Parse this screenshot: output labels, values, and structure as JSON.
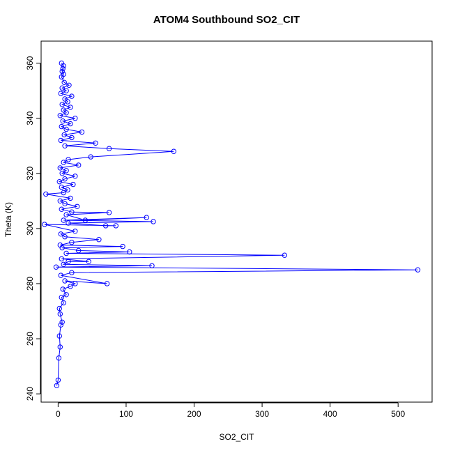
{
  "chart_data": {
    "type": "line",
    "title": "ATOM4 Southbound SO2_CIT",
    "xlabel": "SO2_CIT",
    "ylabel": "Theta (K)",
    "xlim": [
      -25,
      550
    ],
    "ylim": [
      237,
      368
    ],
    "x_ticks": [
      0,
      100,
      200,
      300,
      400,
      500
    ],
    "y_ticks": [
      240,
      260,
      280,
      300,
      320,
      340,
      360
    ],
    "series_color": "#0000ff",
    "marker": "open-circle",
    "grid": false,
    "series": [
      {
        "points": [
          [
            -2,
            243
          ],
          [
            0,
            245
          ],
          [
            1,
            253
          ],
          [
            3,
            257
          ],
          [
            2,
            261
          ],
          [
            4,
            265
          ],
          [
            6,
            266
          ],
          [
            3,
            269
          ],
          [
            2,
            271
          ],
          [
            8,
            273
          ],
          [
            5,
            275
          ],
          [
            12,
            276
          ],
          [
            7,
            278
          ],
          [
            18,
            279
          ],
          [
            25,
            280
          ],
          [
            10,
            281
          ],
          [
            72,
            280
          ],
          [
            4,
            283
          ],
          [
            20,
            284
          ],
          [
            529,
            285
          ],
          [
            -3,
            286
          ],
          [
            138,
            286.5
          ],
          [
            8,
            287
          ],
          [
            15,
            288
          ],
          [
            45,
            288
          ],
          [
            5,
            289
          ],
          [
            333,
            290.3
          ],
          [
            12,
            291
          ],
          [
            105,
            291.5
          ],
          [
            30,
            292
          ],
          [
            6,
            293
          ],
          [
            95,
            293.5
          ],
          [
            3,
            294
          ],
          [
            20,
            295
          ],
          [
            60,
            296
          ],
          [
            10,
            297
          ],
          [
            4,
            298
          ],
          [
            25,
            299
          ],
          [
            -20,
            301.5
          ],
          [
            85,
            301
          ],
          [
            70,
            301
          ],
          [
            15,
            302
          ],
          [
            140,
            302.5
          ],
          [
            8,
            303
          ],
          [
            130,
            304
          ],
          [
            40,
            303
          ],
          [
            12,
            305
          ],
          [
            75,
            305.8
          ],
          [
            20,
            306
          ],
          [
            5,
            307
          ],
          [
            28,
            308
          ],
          [
            10,
            309
          ],
          [
            3,
            310
          ],
          [
            18,
            311
          ],
          [
            -18,
            312.5
          ],
          [
            8,
            313
          ],
          [
            14,
            314
          ],
          [
            5,
            315
          ],
          [
            22,
            316
          ],
          [
            2,
            317
          ],
          [
            10,
            318
          ],
          [
            25,
            319
          ],
          [
            6,
            320
          ],
          [
            12,
            321
          ],
          [
            3,
            322
          ],
          [
            30,
            323
          ],
          [
            8,
            324
          ],
          [
            15,
            325
          ],
          [
            48,
            326
          ],
          [
            170,
            328
          ],
          [
            75,
            329
          ],
          [
            10,
            330
          ],
          [
            55,
            331
          ],
          [
            4,
            332
          ],
          [
            20,
            333
          ],
          [
            9,
            334
          ],
          [
            35,
            335
          ],
          [
            12,
            336
          ],
          [
            5,
            337
          ],
          [
            18,
            338
          ],
          [
            7,
            339
          ],
          [
            25,
            340
          ],
          [
            3,
            341
          ],
          [
            12,
            342
          ],
          [
            8,
            343
          ],
          [
            18,
            344
          ],
          [
            6,
            345
          ],
          [
            14,
            346
          ],
          [
            10,
            347
          ],
          [
            20,
            348
          ],
          [
            4,
            349
          ],
          [
            12,
            350
          ],
          [
            6,
            351
          ],
          [
            16,
            352
          ],
          [
            9,
            353
          ],
          [
            5,
            355
          ],
          [
            8,
            356
          ],
          [
            6,
            357
          ],
          [
            7,
            358
          ],
          [
            8,
            359
          ],
          [
            5,
            360
          ]
        ]
      }
    ]
  }
}
